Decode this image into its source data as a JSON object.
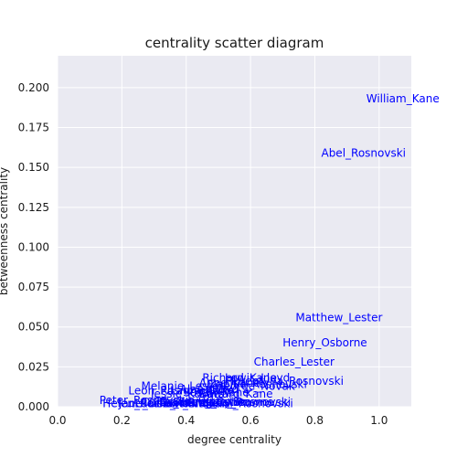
{
  "chart_data": {
    "type": "scatter",
    "title": "centrality scatter diagram",
    "xlabel": "degree centrality",
    "ylabel": "betweenness centrality",
    "xlim": [
      0.0,
      1.1
    ],
    "ylim": [
      0.0,
      0.22
    ],
    "xticks": [
      "0.0",
      "0.2",
      "0.4",
      "0.6",
      "0.8",
      "1.0"
    ],
    "yticks": [
      "0.000",
      "0.025",
      "0.050",
      "0.075",
      "0.100",
      "0.125",
      "0.150",
      "0.175",
      "0.200"
    ],
    "grid": true,
    "background": "#eaeaf2",
    "label_color": "#0000ff",
    "points": [
      {
        "label": "William_Kane",
        "x": 0.96,
        "y": 0.193
      },
      {
        "label": "Abel_Rosnovski",
        "x": 0.82,
        "y": 0.159
      },
      {
        "label": "Matthew_Lester",
        "x": 0.74,
        "y": 0.056
      },
      {
        "label": "Henry_Osborne",
        "x": 0.7,
        "y": 0.04
      },
      {
        "label": "Charles_Lester",
        "x": 0.61,
        "y": 0.028
      },
      {
        "label": "Florentyna_Rosnovski",
        "x": 0.52,
        "y": 0.016
      },
      {
        "label": "Lewis_Lloyd",
        "x": 0.52,
        "y": 0.018
      },
      {
        "label": "Richard_Kane",
        "x": 0.45,
        "y": 0.018
      },
      {
        "label": "Anne_Kane",
        "x": 0.44,
        "y": 0.015
      },
      {
        "label": "Zaphia_Rosnovski",
        "x": 0.47,
        "y": 0.014
      },
      {
        "label": "George_Novak",
        "x": 0.49,
        "y": 0.013
      },
      {
        "label": "Melanie_Lester",
        "x": 0.26,
        "y": 0.013
      },
      {
        "label": "Alan_Lloyd",
        "x": 0.38,
        "y": 0.011
      },
      {
        "label": "Laura_Kane",
        "x": 0.35,
        "y": 0.01
      },
      {
        "label": "Susan_Kane",
        "x": 0.39,
        "y": 0.009
      },
      {
        "label": "Edward_Kane",
        "x": 0.44,
        "y": 0.008
      },
      {
        "label": "Leon_Rosnovski",
        "x": 0.22,
        "y": 0.01
      },
      {
        "label": "Jessie_Kovats",
        "x": 0.29,
        "y": 0.008
      },
      {
        "label": "Peter_Rosnovski",
        "x": 0.13,
        "y": 0.004
      },
      {
        "label": "Helen_Rosnovski",
        "x": 0.14,
        "y": 0.002
      },
      {
        "label": "Curtis_Fenton",
        "x": 0.26,
        "y": 0.003
      },
      {
        "label": "Thaddeus_Cohen",
        "x": 0.31,
        "y": 0.003
      },
      {
        "label": "Sarah_Lester",
        "x": 0.36,
        "y": 0.003
      },
      {
        "label": "Gregory_Rosnovski",
        "x": 0.4,
        "y": 0.003
      },
      {
        "label": "William_Rosnovski",
        "x": 0.42,
        "y": 0.002
      },
      {
        "label": "Tom_Blake",
        "x": 0.32,
        "y": 0.002
      },
      {
        "label": "Kate_Browne",
        "x": 0.45,
        "y": 0.003
      },
      {
        "label": "Jane_Osborne",
        "x": 0.19,
        "y": 0.002
      },
      {
        "label": "Louise_Rosnovski",
        "x": 0.24,
        "y": 0.002
      }
    ]
  }
}
